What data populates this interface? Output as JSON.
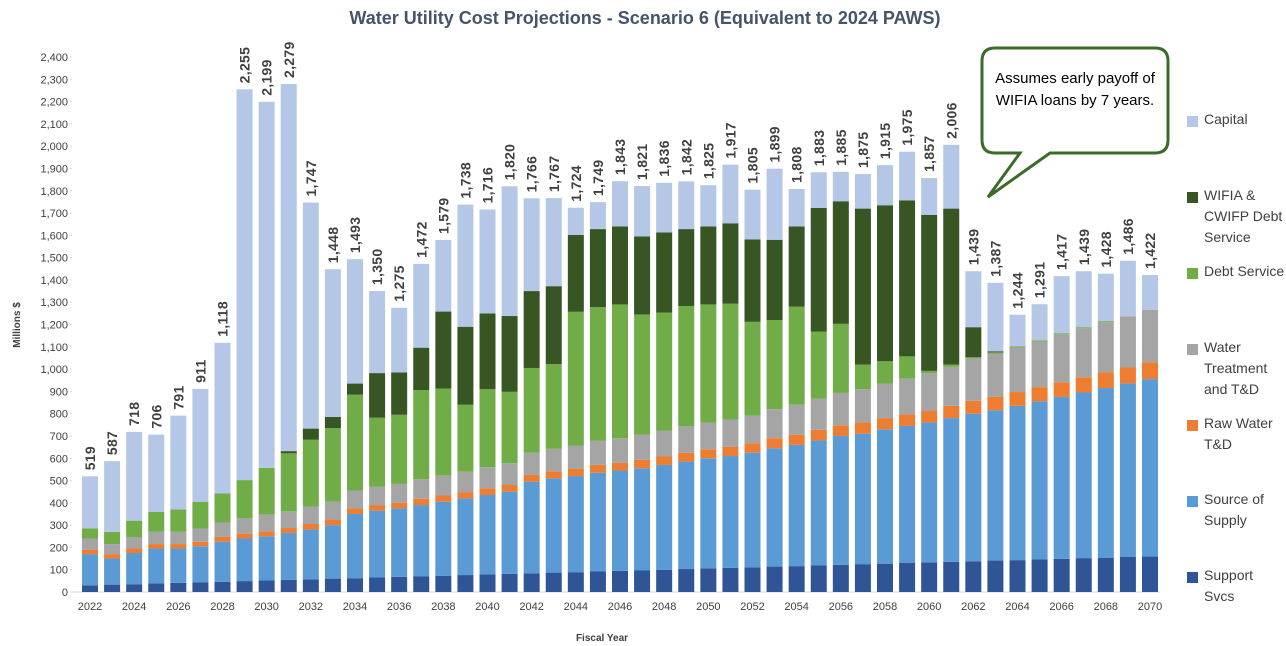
{
  "chart_data": {
    "type": "stacked-bar",
    "title": "Water Utility Cost Projections - Scenario 6 (Equivalent to 2024 PAWS)",
    "y_label": "Millions $",
    "x_label": "Fiscal Year",
    "annotation": "Assumes early payoff of WIFIA loans by 7 years.",
    "categories": [
      "2022",
      null,
      "2024",
      null,
      "2026",
      null,
      "2028",
      null,
      "2030",
      null,
      "2032",
      null,
      "2034",
      null,
      "2036",
      null,
      "2038",
      null,
      "2040",
      null,
      "2042",
      null,
      "2044",
      null,
      "2046",
      null,
      "2048",
      null,
      "2050",
      null,
      "2052",
      null,
      "2054",
      null,
      "2056",
      null,
      "2058",
      null,
      "2060",
      null,
      "2062",
      null,
      "2064",
      null,
      "2066",
      null,
      "2068",
      null,
      "2070"
    ],
    "ylim": [
      0,
      2400
    ],
    "yticks": [
      0,
      100,
      200,
      300,
      400,
      500,
      600,
      700,
      800,
      900,
      {
        "value": 1000,
        "label": "1,000"
      },
      {
        "value": 1100,
        "label": "1,100"
      },
      {
        "value": 1200,
        "label": "1,200"
      },
      {
        "value": 1300,
        "label": "1,300"
      },
      {
        "value": 1400,
        "label": "1,400"
      },
      {
        "value": 1500,
        "label": "1,500"
      },
      {
        "value": 1600,
        "label": "1,600"
      },
      {
        "value": 1700,
        "label": "1,700"
      },
      {
        "value": 1800,
        "label": "1,800"
      },
      {
        "value": 1900,
        "label": "1,900"
      },
      {
        "value": 2000,
        "label": "2,000"
      },
      {
        "value": 2100,
        "label": "2,100"
      },
      {
        "value": 2200,
        "label": "2,200"
      },
      {
        "value": 2300,
        "label": "2,300"
      },
      {
        "value": 2400,
        "label": "2,400"
      }
    ],
    "grid": false,
    "series": [
      {
        "name": "Support Svcs",
        "color": "#2f5597",
        "values": [
          30,
          33,
          35,
          38,
          41,
          44,
          46,
          49,
          52,
          54,
          57,
          60,
          62,
          65,
          68,
          71,
          73,
          76,
          79,
          81,
          84,
          87,
          89,
          92,
          95,
          98,
          100,
          103,
          106,
          108,
          111,
          114,
          116,
          119,
          122,
          125,
          127,
          130,
          133,
          135,
          138,
          141,
          143,
          146,
          149,
          152,
          154,
          157,
          160
        ]
      },
      {
        "name": "Source of Supply",
        "color": "#5b9bd5",
        "values": [
          140,
          117,
          140,
          157,
          154,
          161,
          179,
          191,
          198,
          211,
          223,
          240,
          288,
          300,
          307,
          319,
          332,
          344,
          356,
          369,
          411,
          423,
          431,
          443,
          450,
          457,
          470,
          482,
          494,
          502,
          514,
          531,
          544,
          561,
          578,
          585,
          603,
          615,
          627,
          645,
          662,
          674,
          692,
          709,
          726,
          743,
          761,
          778,
          795
        ]
      },
      {
        "name": "Raw Water T&D",
        "color": "#ed7d31",
        "values": [
          20,
          20,
          20,
          20,
          20,
          20,
          22,
          22,
          22,
          22,
          25,
          25,
          25,
          25,
          25,
          28,
          28,
          28,
          30,
          30,
          30,
          32,
          32,
          35,
          35,
          38,
          38,
          40,
          40,
          42,
          42,
          45,
          45,
          48,
          48,
          50,
          50,
          52,
          52,
          55,
          58,
          60,
          62,
          64,
          66,
          68,
          70,
          72,
          75
        ]
      },
      {
        "name": "Water Treatment and T&D",
        "color": "#a5a5a5",
        "values": [
          50,
          45,
          50,
          55,
          55,
          60,
          65,
          70,
          75,
          75,
          78,
          80,
          80,
          82,
          85,
          88,
          90,
          92,
          95,
          98,
          100,
          100,
          105,
          108,
          110,
          112,
          115,
          118,
          120,
          122,
          125,
          130,
          135,
          140,
          145,
          150,
          155,
          160,
          170,
          175,
          190,
          195,
          200,
          205,
          215,
          220,
          225,
          230,
          235
        ]
      },
      {
        "name": "Debt Service",
        "color": "#70ad47",
        "values": [
          45,
          55,
          75,
          90,
          100,
          120,
          130,
          170,
          210,
          260,
          300,
          330,
          430,
          310,
          310,
          400,
          390,
          300,
          350,
          320,
          380,
          380,
          600,
          600,
          600,
          540,
          530,
          540,
          530,
          520,
          420,
          400,
          440,
          300,
          310,
          110,
          100,
          100,
          10,
          10,
          5,
          5,
          5,
          5,
          5,
          5,
          5,
          0,
          0
        ]
      },
      {
        "name": "WIFIA & CWIFP Debt Service",
        "color": "#375623",
        "values": [
          0,
          0,
          0,
          0,
          0,
          0,
          0,
          0,
          0,
          10,
          50,
          50,
          50,
          200,
          190,
          190,
          345,
          350,
          340,
          340,
          345,
          350,
          345,
          350,
          350,
          350,
          360,
          345,
          350,
          360,
          370,
          360,
          360,
          555,
          550,
          700,
          700,
          700,
          700,
          700,
          135,
          5,
          0,
          0,
          0,
          0,
          0,
          0,
          0
        ]
      },
      {
        "name": "Capital",
        "color": "#b4c7e7",
        "values": [
          234,
          317,
          398,
          346,
          421,
          506,
          676,
          1753,
          1642,
          1647,
          1014,
          663,
          558,
          368,
          290,
          376,
          321,
          548,
          466,
          582,
          416,
          395,
          122,
          121,
          203,
          226,
          223,
          214,
          185,
          263,
          223,
          319,
          168,
          160,
          132,
          155,
          180,
          218,
          165,
          286,
          251,
          307,
          142,
          162,
          256,
          251,
          213,
          249,
          157
        ]
      }
    ],
    "totals": [
      519,
      587,
      718,
      706,
      791,
      911,
      1118,
      2255,
      2199,
      2279,
      1747,
      1448,
      1493,
      1350,
      1275,
      1472,
      1579,
      1738,
      1716,
      1820,
      1766,
      1767,
      1724,
      1749,
      1843,
      1821,
      1836,
      1842,
      1825,
      1917,
      1805,
      1899,
      1808,
      1883,
      1885,
      1875,
      1915,
      1975,
      1857,
      2006,
      1439,
      1387,
      1244,
      1291,
      1417,
      1439,
      1428,
      1486,
      1422
    ],
    "total_labels": [
      "519",
      "587",
      "718",
      "706",
      "791",
      "911",
      "1,118",
      "2,255",
      "2,199",
      "2,279",
      "1,747",
      "1,448",
      "1,493",
      "1,350",
      "1,275",
      "1,472",
      "1,579",
      "1,738",
      "1,716",
      "1,820",
      "1,766",
      "1,767",
      "1,724",
      "1,749",
      "1,843",
      "1,821",
      "1,836",
      "1,842",
      "1,825",
      "1,917",
      "1,805",
      "1,899",
      "1,808",
      "1,883",
      "1,885",
      "1,875",
      "1,915",
      "1,975",
      "1,857",
      "2,006",
      "1,439",
      "1,387",
      "1,244",
      "1,291",
      "1,417",
      "1,439",
      "1,428",
      "1,486",
      "1,422"
    ]
  }
}
